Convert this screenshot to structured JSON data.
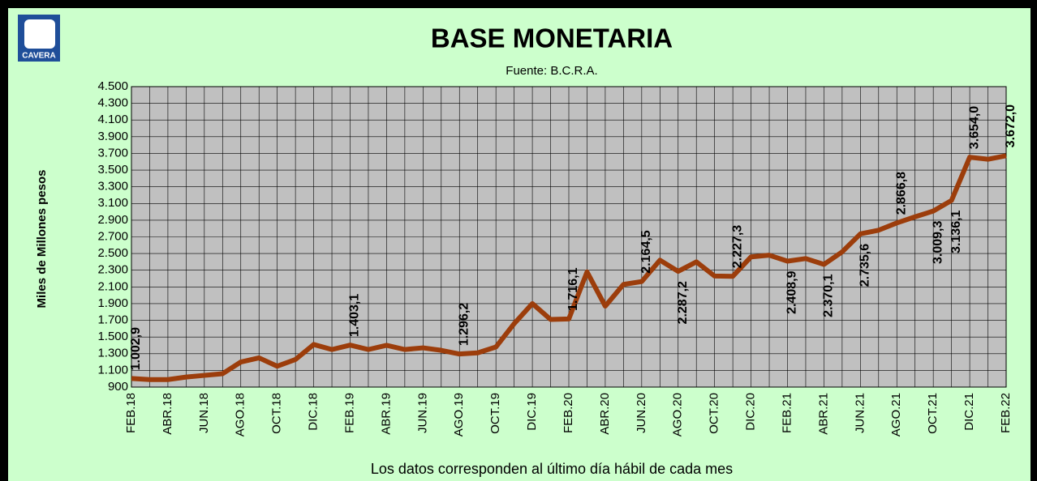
{
  "logo": "CAVERA",
  "chart_data": {
    "type": "line",
    "title": "BASE MONETARIA",
    "subtitle": "Fuente: B.C.R.A.",
    "y_label": "Miles de Millones  pesos",
    "note": "Los datos corresponden al último día hábil de cada mes",
    "categories": [
      "FEB.18",
      null,
      "ABR.18",
      null,
      "JUN.18",
      null,
      "AGO.18",
      null,
      "OCT.18",
      null,
      "DIC.18",
      null,
      "FEB.19",
      null,
      "ABR.19",
      null,
      "JUN.19",
      null,
      "AGO.19",
      null,
      "OCT.19",
      null,
      "DIC.19",
      null,
      "FEB.20",
      null,
      "ABR.20",
      null,
      "JUN.20",
      null,
      "AGO.20",
      null,
      "OCT.20",
      null,
      "DIC.20",
      null,
      "FEB.21",
      null,
      "ABR.21",
      null,
      "JUN.21",
      null,
      "AGO.21",
      null,
      "OCT.21",
      null,
      "DIC.21",
      null,
      "FEB.22"
    ],
    "series": [
      {
        "name": "Base Monetaria",
        "color": "#9c3d0b",
        "values": [
          1002.9,
          990,
          990,
          1020,
          1040,
          1060,
          1200,
          1250,
          1150,
          1230,
          1410,
          1350,
          1403.1,
          1350,
          1400,
          1350,
          1370,
          1340,
          1296.2,
          1310,
          1380,
          1660,
          1900,
          1710,
          1716.1,
          2280,
          1870,
          2130,
          2164.5,
          2420,
          2287.2,
          2400,
          2230,
          2227.3,
          2460,
          2480,
          2408.9,
          2440,
          2370.1,
          2520,
          2735.6,
          2780,
          2866.8,
          2940,
          3009.3,
          3136.1,
          3654.0,
          3630,
          3672.0
        ],
        "value_labels": [
          "1.002,9",
          null,
          null,
          null,
          null,
          null,
          null,
          null,
          null,
          null,
          null,
          null,
          "1.403,1",
          null,
          null,
          null,
          null,
          null,
          "1.296,2",
          null,
          null,
          null,
          null,
          null,
          "1.716,1",
          null,
          null,
          null,
          "2.164,5",
          null,
          "2.287,2",
          null,
          null,
          "2.227,3",
          null,
          null,
          "2.408,9",
          null,
          "2.370,1",
          null,
          "2.735,6",
          null,
          "2.866,8",
          null,
          "3.009,3",
          "3.136,1",
          "3.654,0",
          null,
          "3.672,0"
        ]
      }
    ],
    "ylim": [
      900,
      4500
    ],
    "yticks": [
      900,
      {
        "value": 1100,
        "label": "1.100"
      },
      {
        "value": 1300,
        "label": "1.300"
      },
      {
        "value": 1500,
        "label": "1.500"
      },
      {
        "value": 1700,
        "label": "1.700"
      },
      {
        "value": 1900,
        "label": "1.900"
      },
      {
        "value": 2100,
        "label": "2.100"
      },
      {
        "value": 2300,
        "label": "2.300"
      },
      {
        "value": 2500,
        "label": "2.500"
      },
      {
        "value": 2700,
        "label": "2.700"
      },
      {
        "value": 2900,
        "label": "2.900"
      },
      {
        "value": 3100,
        "label": "3.100"
      },
      {
        "value": 3300,
        "label": "3.300"
      },
      {
        "value": 3500,
        "label": "3.500"
      },
      {
        "value": 3700,
        "label": "3.700"
      },
      {
        "value": 3900,
        "label": "3.900"
      },
      {
        "value": 4100,
        "label": "4.100"
      },
      {
        "value": 4300,
        "label": "4.300"
      },
      {
        "value": 4500,
        "label": "4.500"
      }
    ],
    "grid": true
  }
}
